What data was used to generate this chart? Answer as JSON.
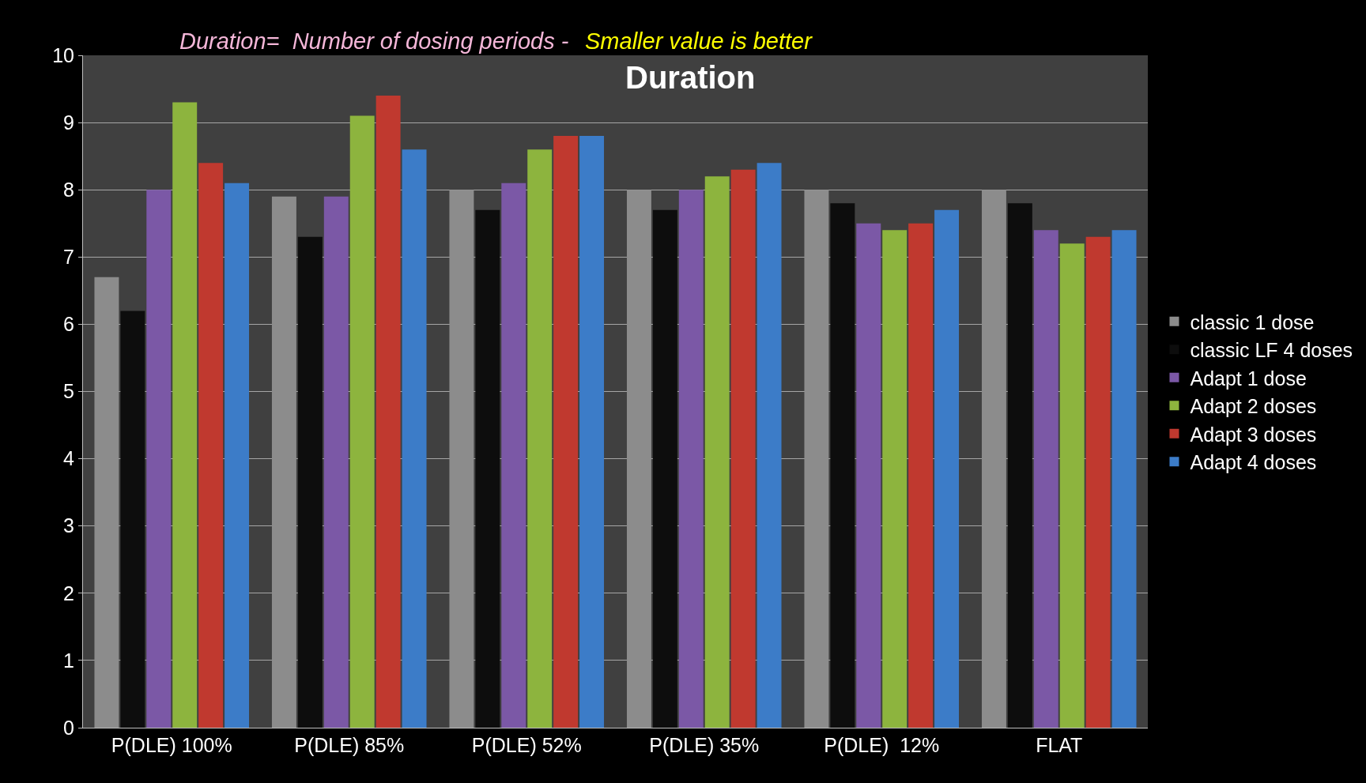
{
  "chart_data": {
    "type": "bar",
    "title": "Duration",
    "annotations": [
      "Duration=  Number of dosing periods -  ",
      "Smaller value is better"
    ],
    "categories": [
      "P(DLE) 100%",
      "P(DLE) 85%",
      "P(DLE) 52%",
      "P(DLE) 35%",
      "P(DLE)  12%",
      "FLAT"
    ],
    "series": [
      {
        "name": "classic 1 dose",
        "color": "#8c8c8c",
        "values": [
          6.7,
          7.9,
          8.0,
          8.0,
          8.0,
          8.0
        ]
      },
      {
        "name": "classic LF 4 doses",
        "color": "#0d0d0d",
        "values": [
          6.2,
          7.3,
          7.7,
          7.7,
          7.8,
          7.8
        ]
      },
      {
        "name": "Adapt 1 dose",
        "color": "#7b58a6",
        "values": [
          8.0,
          7.9,
          8.1,
          8.0,
          7.5,
          7.4
        ]
      },
      {
        "name": "Adapt 2 doses",
        "color": "#8db43e",
        "values": [
          9.3,
          9.1,
          8.6,
          8.2,
          7.4,
          7.2
        ]
      },
      {
        "name": "Adapt 3 doses",
        "color": "#c0392f",
        "values": [
          8.4,
          9.4,
          8.8,
          8.3,
          7.5,
          7.3
        ]
      },
      {
        "name": "Adapt 4 doses",
        "color": "#3c7cc8",
        "values": [
          8.1,
          8.6,
          8.8,
          8.4,
          7.7,
          7.4
        ]
      }
    ],
    "ylim": [
      0,
      10
    ],
    "yticks": [
      0,
      1,
      2,
      3,
      4,
      5,
      6,
      7,
      8,
      9,
      10
    ],
    "grid": "y",
    "legend": "right"
  }
}
